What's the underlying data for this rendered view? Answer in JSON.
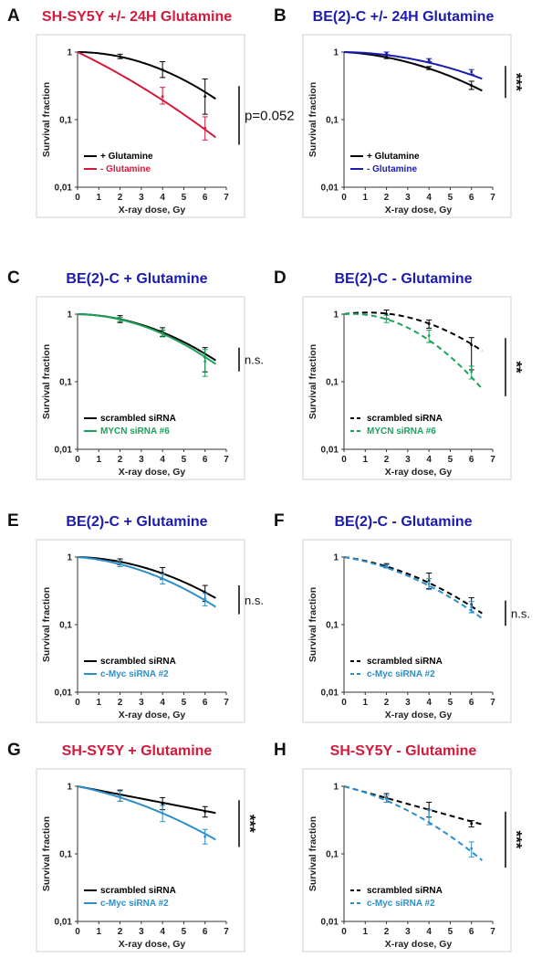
{
  "chart_data": [
    {
      "id": "A",
      "letter": "A",
      "type": "line",
      "log_y": true,
      "title": "SH-SY5Y +/- 24H Glutamine",
      "title_color": "#d41a3c",
      "xlabel": "X-ray dose, Gy",
      "ylabel": "Survival fraction",
      "xlim": [
        0,
        7
      ],
      "ylim": [
        0.01,
        1
      ],
      "xticks": [
        "0",
        "1",
        "2",
        "3",
        "4",
        "5",
        "6",
        "7"
      ],
      "yticks": [
        "0,01",
        "0,1",
        "1"
      ],
      "series": [
        {
          "name": "+ Glutamine",
          "color": "#000000",
          "dashed": false,
          "curve": {
            "a": 0.005,
            "b": 0.037
          },
          "points": [
            {
              "x": 2,
              "y": 0.86,
              "lo": 0.8,
              "hi": 0.93
            },
            {
              "x": 4,
              "y": 0.55,
              "lo": 0.42,
              "hi": 0.72
            },
            {
              "x": 6,
              "y": 0.22,
              "lo": 0.12,
              "hi": 0.4
            }
          ]
        },
        {
          "name": "- Glutamine",
          "color": "#d41a3c",
          "dashed": false,
          "curve": {
            "a": 0.35,
            "b": 0.015
          },
          "points": [
            {
              "x": 4,
              "y": 0.22,
              "lo": 0.17,
              "hi": 0.3
            },
            {
              "x": 6,
              "y": 0.075,
              "lo": 0.05,
              "hi": 0.11
            }
          ]
        }
      ],
      "significance": "p=0.052"
    },
    {
      "id": "B",
      "letter": "B",
      "type": "line",
      "log_y": true,
      "title": "BE(2)-C +/- 24H Glutamine",
      "title_color": "#1b1bb0",
      "xlabel": "X-ray dose, Gy",
      "ylabel": "Survival fraction",
      "xlim": [
        0,
        7
      ],
      "ylim": [
        0.01,
        1
      ],
      "xticks": [
        "0",
        "1",
        "2",
        "3",
        "4",
        "5",
        "6",
        "7"
      ],
      "yticks": [
        "0,01",
        "0,1",
        "1"
      ],
      "series": [
        {
          "name": "+ Glutamine",
          "color": "#000000",
          "dashed": false,
          "curve": {
            "a": 0.04,
            "b": 0.025
          },
          "points": [
            {
              "x": 2,
              "y": 0.85,
              "lo": 0.8,
              "hi": 0.91
            },
            {
              "x": 4,
              "y": 0.58,
              "lo": 0.55,
              "hi": 0.61
            },
            {
              "x": 6,
              "y": 0.32,
              "lo": 0.28,
              "hi": 0.37
            }
          ]
        },
        {
          "name": "- Glutamine",
          "color": "#1b1bb0",
          "dashed": false,
          "curve": {
            "a": 0.01,
            "b": 0.02
          },
          "points": [
            {
              "x": 2,
              "y": 0.96,
              "lo": 0.92,
              "hi": 1.0
            },
            {
              "x": 4,
              "y": 0.76,
              "lo": 0.72,
              "hi": 0.8
            },
            {
              "x": 6,
              "y": 0.51,
              "lo": 0.47,
              "hi": 0.55
            }
          ]
        }
      ],
      "significance": "***"
    },
    {
      "id": "C",
      "letter": "C",
      "type": "line",
      "log_y": true,
      "title": "BE(2)-C + Glutamine",
      "title_color": "#1b1bb0",
      "xlabel": "X-ray dose, Gy",
      "ylabel": "Survival fraction",
      "xlim": [
        0,
        7
      ],
      "ylim": [
        0.01,
        1
      ],
      "xticks": [
        "0",
        "1",
        "2",
        "3",
        "4",
        "5",
        "6",
        "7"
      ],
      "yticks": [
        "0,01",
        "0,1",
        "1"
      ],
      "series": [
        {
          "name": "scrambled siRNA",
          "color": "#000000",
          "dashed": false,
          "curve": {
            "a": 0.015,
            "b": 0.035
          },
          "points": [
            {
              "x": 2,
              "y": 0.85,
              "lo": 0.75,
              "hi": 0.95
            },
            {
              "x": 4,
              "y": 0.55,
              "lo": 0.47,
              "hi": 0.63
            },
            {
              "x": 6,
              "y": 0.23,
              "lo": 0.14,
              "hi": 0.32
            }
          ]
        },
        {
          "name": "MYCN siRNA #6",
          "color": "#1aa35a",
          "dashed": false,
          "curve": {
            "a": 0.015,
            "b": 0.038
          },
          "points": [
            {
              "x": 2,
              "y": 0.84,
              "lo": 0.78,
              "hi": 0.9
            },
            {
              "x": 4,
              "y": 0.52,
              "lo": 0.46,
              "hi": 0.58
            },
            {
              "x": 6,
              "y": 0.2,
              "lo": 0.12,
              "hi": 0.3
            }
          ]
        }
      ],
      "significance": "n.s."
    },
    {
      "id": "D",
      "letter": "D",
      "type": "line",
      "log_y": true,
      "title": "BE(2)-C - Glutamine",
      "title_color": "#1b1bb0",
      "xlabel": "X-ray dose, Gy",
      "ylabel": "Survival fraction",
      "xlim": [
        0,
        7
      ],
      "ylim": [
        0.01,
        1
      ],
      "xticks": [
        "0",
        "1",
        "2",
        "3",
        "4",
        "5",
        "6",
        "7"
      ],
      "yticks": [
        "0,01",
        "0,1",
        "1"
      ],
      "series": [
        {
          "name": "scrambled siRNA",
          "color": "#000000",
          "dashed": true,
          "curve": {
            "a": -0.1,
            "b": 0.045
          },
          "points": [
            {
              "x": 2,
              "y": 1.0,
              "lo": 0.85,
              "hi": 1.15
            },
            {
              "x": 4,
              "y": 0.72,
              "lo": 0.62,
              "hi": 0.82
            },
            {
              "x": 6,
              "y": 0.35,
              "lo": 0.15,
              "hi": 0.45
            }
          ]
        },
        {
          "name": "MYCN siRNA #6",
          "color": "#1aa35a",
          "dashed": true,
          "curve": {
            "a": -0.05,
            "b": 0.068
          },
          "points": [
            {
              "x": 2,
              "y": 0.85,
              "lo": 0.75,
              "hi": 0.96
            },
            {
              "x": 4,
              "y": 0.48,
              "lo": 0.38,
              "hi": 0.58
            },
            {
              "x": 6,
              "y": 0.14,
              "lo": 0.11,
              "hi": 0.17
            }
          ]
        }
      ],
      "significance": "**"
    },
    {
      "id": "E",
      "letter": "E",
      "type": "line",
      "log_y": true,
      "title": "BE(2)-C + Glutamine",
      "title_color": "#1b1bb0",
      "xlabel": "X-ray dose, Gy",
      "ylabel": "Survival fraction",
      "xlim": [
        0,
        7
      ],
      "ylim": [
        0.01,
        1
      ],
      "xticks": [
        "0",
        "1",
        "2",
        "3",
        "4",
        "5",
        "6",
        "7"
      ],
      "yticks": [
        "0,01",
        "0,1",
        "1"
      ],
      "series": [
        {
          "name": "scrambled siRNA",
          "color": "#000000",
          "dashed": false,
          "curve": {
            "a": 0.02,
            "b": 0.03
          },
          "points": [
            {
              "x": 2,
              "y": 0.85,
              "lo": 0.77,
              "hi": 0.94
            },
            {
              "x": 4,
              "y": 0.58,
              "lo": 0.47,
              "hi": 0.7
            },
            {
              "x": 6,
              "y": 0.3,
              "lo": 0.22,
              "hi": 0.38
            }
          ]
        },
        {
          "name": "c-Myc siRNA #2",
          "color": "#2c8fc9",
          "dashed": false,
          "curve": {
            "a": 0.06,
            "b": 0.031
          },
          "points": [
            {
              "x": 2,
              "y": 0.8,
              "lo": 0.72,
              "hi": 0.88
            },
            {
              "x": 4,
              "y": 0.48,
              "lo": 0.4,
              "hi": 0.56
            },
            {
              "x": 6,
              "y": 0.24,
              "lo": 0.19,
              "hi": 0.29
            }
          ]
        }
      ],
      "significance": "n.s."
    },
    {
      "id": "F",
      "letter": "F",
      "type": "line",
      "log_y": true,
      "title": "BE(2)-C - Glutamine",
      "title_color": "#1b1bb0",
      "xlabel": "X-ray dose, Gy",
      "ylabel": "Survival fraction",
      "xlim": [
        0,
        7
      ],
      "ylim": [
        0.01,
        1
      ],
      "xticks": [
        "0",
        "1",
        "2",
        "3",
        "4",
        "5",
        "6",
        "7"
      ],
      "yticks": [
        "0,01",
        "0,1",
        "1"
      ],
      "series": [
        {
          "name": "scrambled siRNA",
          "color": "#000000",
          "dashed": true,
          "curve": {
            "a": 0.1,
            "b": 0.03
          },
          "points": [
            {
              "x": 2,
              "y": 0.75,
              "lo": 0.7,
              "hi": 0.8
            },
            {
              "x": 4,
              "y": 0.45,
              "lo": 0.34,
              "hi": 0.58
            },
            {
              "x": 6,
              "y": 0.2,
              "lo": 0.15,
              "hi": 0.25
            }
          ]
        },
        {
          "name": "c-Myc siRNA #2",
          "color": "#2c8fc9",
          "dashed": true,
          "curve": {
            "a": 0.12,
            "b": 0.031
          },
          "points": [
            {
              "x": 2,
              "y": 0.73,
              "lo": 0.69,
              "hi": 0.77
            },
            {
              "x": 4,
              "y": 0.4,
              "lo": 0.33,
              "hi": 0.48
            },
            {
              "x": 6,
              "y": 0.18,
              "lo": 0.15,
              "hi": 0.22
            }
          ]
        }
      ],
      "significance": "n.s."
    },
    {
      "id": "G",
      "letter": "G",
      "type": "line",
      "log_y": true,
      "title": "SH-SY5Y + Glutamine",
      "title_color": "#d41a3c",
      "xlabel": "X-ray dose, Gy",
      "ylabel": "Survival fraction",
      "xlim": [
        0,
        7
      ],
      "ylim": [
        0.01,
        1
      ],
      "xticks": [
        "0",
        "1",
        "2",
        "3",
        "4",
        "5",
        "6",
        "7"
      ],
      "yticks": [
        "0,01",
        "0,1",
        "1"
      ],
      "series": [
        {
          "name": "scrambled siRNA",
          "color": "#000000",
          "dashed": false,
          "curve": {
            "a": 0.14,
            "b": 0.0
          },
          "points": [
            {
              "x": 2,
              "y": 0.73,
              "lo": 0.6,
              "hi": 0.88
            },
            {
              "x": 4,
              "y": 0.55,
              "lo": 0.45,
              "hi": 0.68
            },
            {
              "x": 6,
              "y": 0.42,
              "lo": 0.35,
              "hi": 0.5
            }
          ]
        },
        {
          "name": "c-Myc siRNA #2",
          "color": "#2c8fc9",
          "dashed": false,
          "curve": {
            "a": 0.15,
            "b": 0.02
          },
          "points": [
            {
              "x": 2,
              "y": 0.72,
              "lo": 0.6,
              "hi": 0.85
            },
            {
              "x": 4,
              "y": 0.4,
              "lo": 0.3,
              "hi": 0.52
            },
            {
              "x": 6,
              "y": 0.18,
              "lo": 0.14,
              "hi": 0.23
            }
          ]
        }
      ],
      "significance": "***"
    },
    {
      "id": "H",
      "letter": "H",
      "type": "line",
      "log_y": true,
      "title": "SH-SY5Y - Glutamine",
      "title_color": "#d41a3c",
      "xlabel": "X-ray dose, Gy",
      "ylabel": "Survival fraction",
      "xlim": [
        0,
        7
      ],
      "ylim": [
        0.01,
        1
      ],
      "xticks": [
        "0",
        "1",
        "2",
        "3",
        "4",
        "5",
        "6",
        "7"
      ],
      "yticks": [
        "0,01",
        "0,1",
        "1"
      ],
      "series": [
        {
          "name": "scrambled siRNA",
          "color": "#000000",
          "dashed": true,
          "curve": {
            "a": 0.2,
            "b": 0.0
          },
          "points": [
            {
              "x": 2,
              "y": 0.68,
              "lo": 0.58,
              "hi": 0.78
            },
            {
              "x": 4,
              "y": 0.45,
              "lo": 0.35,
              "hi": 0.58
            },
            {
              "x": 6,
              "y": 0.28,
              "lo": 0.25,
              "hi": 0.31
            }
          ]
        },
        {
          "name": "c-Myc siRNA #2",
          "color": "#2c8fc9",
          "dashed": true,
          "curve": {
            "a": 0.18,
            "b": 0.032
          },
          "points": [
            {
              "x": 2,
              "y": 0.65,
              "lo": 0.58,
              "hi": 0.73
            },
            {
              "x": 4,
              "y": 0.35,
              "lo": 0.27,
              "hi": 0.45
            },
            {
              "x": 6,
              "y": 0.12,
              "lo": 0.09,
              "hi": 0.15
            }
          ]
        }
      ],
      "significance": "***"
    }
  ]
}
